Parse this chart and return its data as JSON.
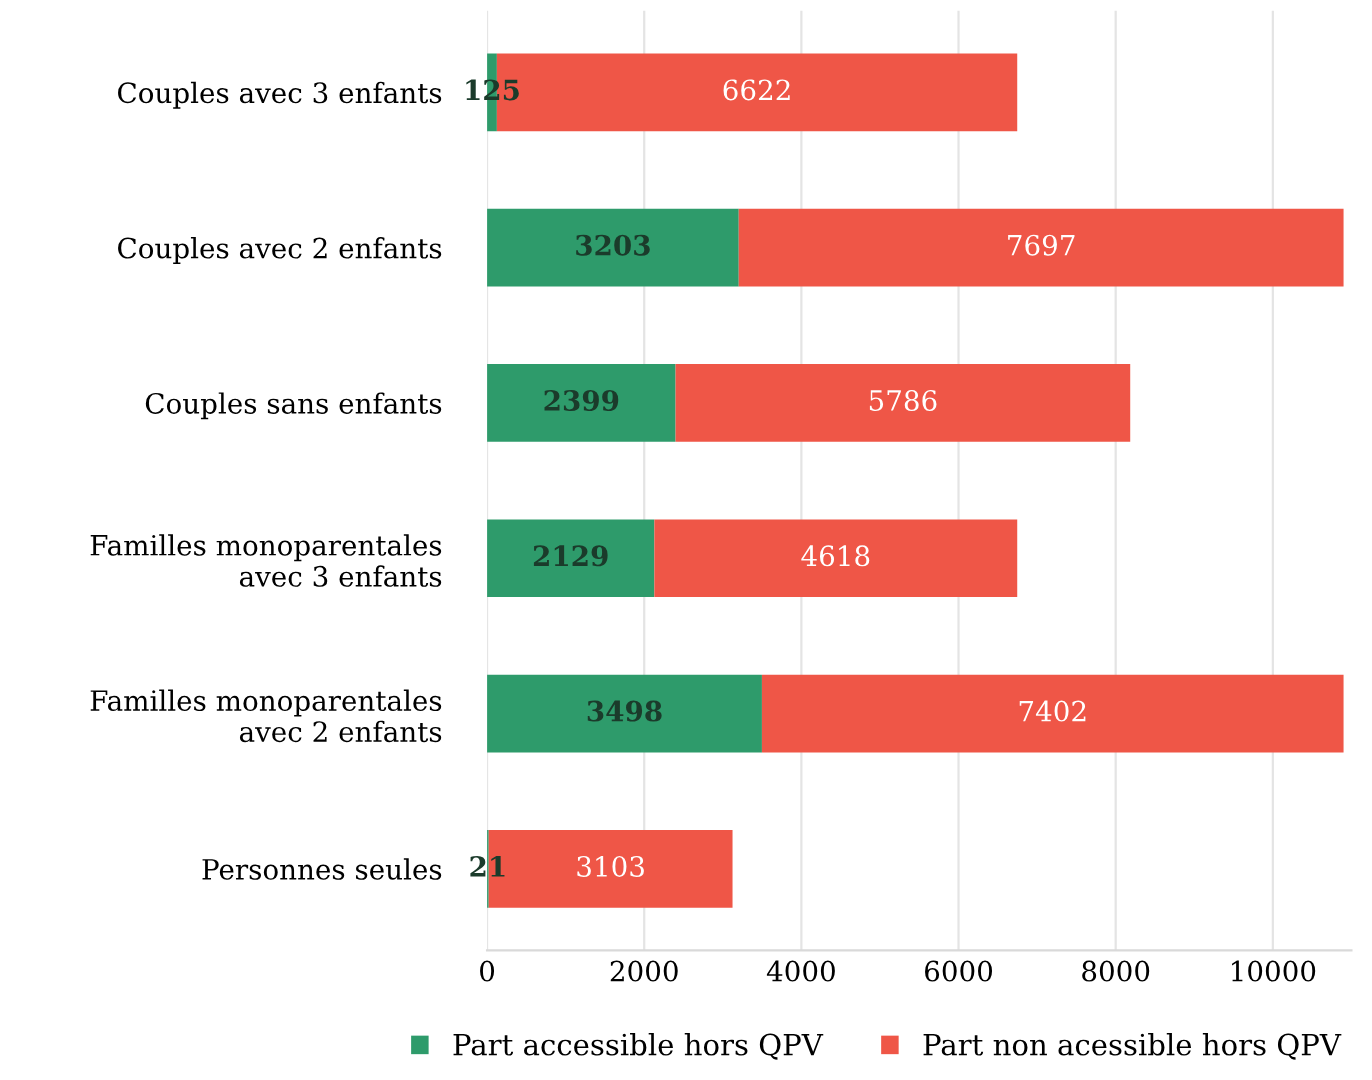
{
  "chart_data": {
    "type": "bar",
    "orientation": "horizontal",
    "stacked": true,
    "categories": [
      "Couples avec 3 enfants",
      "Couples avec 2 enfants",
      "Couples sans enfants",
      "Familles monoparentales\navec 3 enfants",
      "Familles monoparentales\navec 2 enfants",
      "Personnes seules"
    ],
    "series": [
      {
        "name": "Part accessible hors QPV",
        "color": "#2e9b6b",
        "values": [
          125,
          3203,
          2399,
          2129,
          3498,
          21
        ]
      },
      {
        "name": "Part non acessible hors QPV",
        "color": "#ef5647",
        "values": [
          6622,
          7697,
          5786,
          4618,
          7402,
          3103
        ]
      }
    ],
    "xlim": [
      0,
      11000
    ],
    "xticks": [
      0,
      2000,
      4000,
      6000,
      8000,
      10000
    ],
    "grid": "x",
    "legend": "bottom",
    "data_labels": true
  }
}
